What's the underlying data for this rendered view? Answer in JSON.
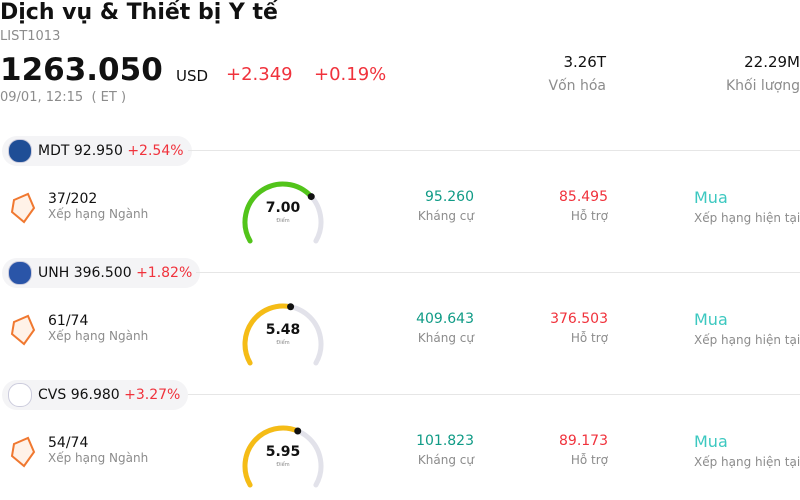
{
  "header": {
    "title": "Dịch vụ & Thiết bị Y tế",
    "symbol": "LIST1013",
    "price": "1263.050",
    "currency": "USD",
    "change": "+2.349",
    "change_pct": "+0.19%",
    "timestamp": "09/01, 12:15  ( ET )",
    "stats": [
      {
        "value": "3.26T",
        "label": "Vốn hóa"
      },
      {
        "value": "22.29M",
        "label": "Khối lượng"
      }
    ]
  },
  "items": [
    {
      "ticker": "MDT",
      "price": "92.950",
      "change_pct": "+2.54%",
      "rank": "37/202",
      "rank_label": "Xếp hạng Ngành",
      "score": "7.00",
      "score_label": "Điểm",
      "gauge_color": "#52c41a",
      "resistance": "95.260",
      "resistance_label": "Kháng cự",
      "support": "85.495",
      "support_label": "Hỗ trợ",
      "rating": "Mua",
      "rating_label": "Xếp hạng hiện tại"
    },
    {
      "ticker": "UNH",
      "price": "396.500",
      "change_pct": "+1.82%",
      "rank": "61/74",
      "rank_label": "Xếp hạng Ngành",
      "score": "5.48",
      "score_label": "Điểm",
      "gauge_color": "#f5bc16",
      "resistance": "409.643",
      "resistance_label": "Kháng cự",
      "support": "376.503",
      "support_label": "Hỗ trợ",
      "rating": "Mua",
      "rating_label": "Xếp hạng hiện tại"
    },
    {
      "ticker": "CVS",
      "price": "96.980",
      "change_pct": "+3.27%",
      "rank": "54/74",
      "rank_label": "Xếp hạng Ngành",
      "score": "5.95",
      "score_label": "Điểm",
      "gauge_color": "#f5bc16",
      "resistance": "101.823",
      "resistance_label": "Kháng cự",
      "support": "89.173",
      "support_label": "Hỗ trợ",
      "rating": "Mua",
      "rating_label": "Xếp hạng hiện tại"
    }
  ]
}
